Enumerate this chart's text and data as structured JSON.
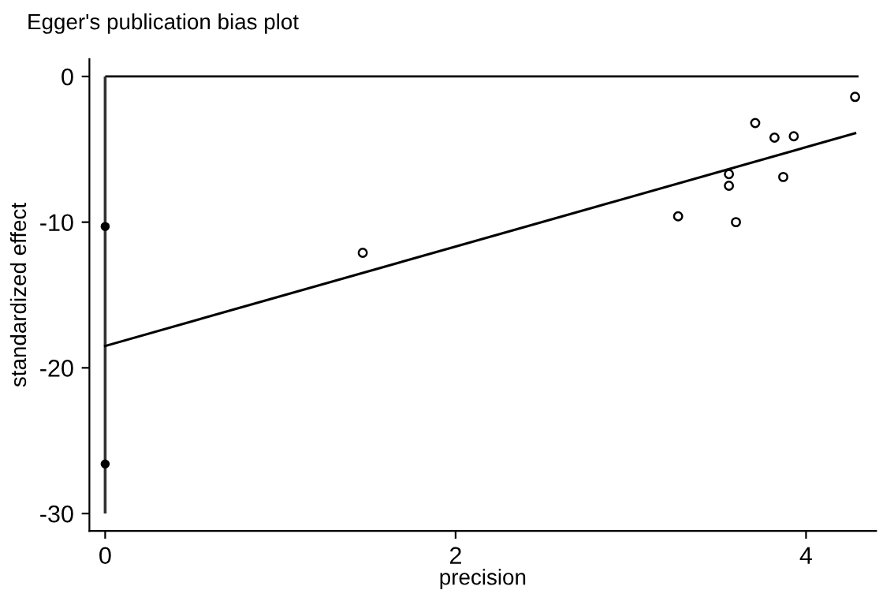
{
  "chart_data": {
    "type": "scatter",
    "title": "Egger's publication bias plot",
    "xlabel": "precision",
    "ylabel": "standardized effect",
    "series": [
      {
        "color": "#000000",
        "x": [
          1.47,
          3.27,
          3.56,
          3.56,
          3.6,
          3.71,
          3.82,
          3.93,
          3.87,
          4.28
        ],
        "values": [
          -12.1,
          -9.6,
          -6.7,
          -7.5,
          -10.0,
          -3.2,
          -4.2,
          -4.1,
          -6.9,
          -1.4
        ]
      },
      {
        "type": "line",
        "marker": "none",
        "color": "#000000",
        "x": [
          0,
          4.28
        ],
        "values": [
          -18.5,
          -3.9
        ]
      },
      {
        "color": "#000000",
        "x": [
          0,
          0
        ],
        "values": [
          -10.3,
          -26.6
        ]
      }
    ],
    "ref_lines": [
      {
        "axis": "y",
        "value": 0
      },
      {
        "axis": "x",
        "value": 0
      }
    ],
    "xlim": [
      -0.09,
      4.4
    ],
    "ylim": [
      -31.2,
      1.2
    ],
    "xticks": [
      0,
      2,
      4
    ],
    "yticks": [
      0,
      -10,
      -20,
      -30
    ],
    "marker": "circle",
    "grid": false,
    "legend": false
  }
}
